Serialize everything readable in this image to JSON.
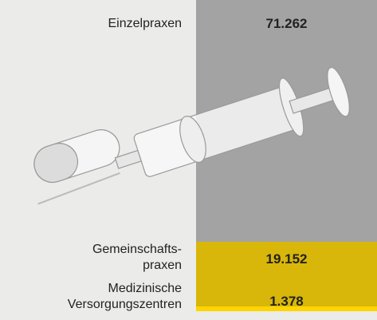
{
  "chart_data": {
    "type": "stacked-column",
    "categories": [
      "Einzelpraxen",
      "Gemeinschafts-\npraxen",
      "Medizinische\nVersorgungszentren"
    ],
    "values": [
      71262,
      19152,
      1378
    ],
    "value_labels": [
      "71.262",
      "19.152",
      "1.378"
    ],
    "colors": [
      "#a3a3a3",
      "#d8b70a",
      "#ffd400"
    ]
  }
}
